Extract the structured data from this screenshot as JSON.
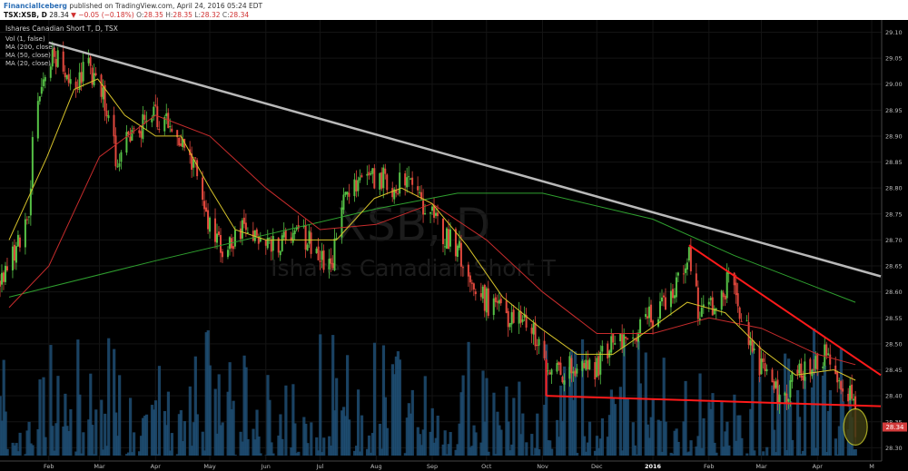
{
  "header": {
    "publisher": "FinancialIceberg",
    "published_text": "published on TradingView.com, April 24, 2016 05:24 EDT",
    "symbol_line": "TSX:XSB, D",
    "last": "28.34",
    "change": "−0.05 (−0.18%)",
    "open_label": "O:",
    "open": "28.35",
    "high_label": "H:",
    "high": "28.35",
    "low_label": "L:",
    "low": "28.32",
    "close_label": "C:",
    "close": "28.34"
  },
  "legend": {
    "title": "Ishares Canadian Short T, D, TSX",
    "items": [
      "Vol (1, false)",
      "MA (200, close)",
      "MA (50, close)",
      "MA (20, close)"
    ]
  },
  "watermark": {
    "symbol": "XSB, D",
    "name": "Ishares Canadian Short T"
  },
  "price_badge": "28.34",
  "colors": {
    "background": "#000000",
    "candle_up": "#56c246",
    "candle_down": "#e2483d",
    "ma20": "#d7c32a",
    "ma50": "#c72c2c",
    "ma200": "#2fa02f",
    "volume": "#1e4d73",
    "trendline_upper": "#b9b9b9",
    "trendline_red": "#ff1a1a",
    "price_badge": "#d23b3b"
  },
  "chart_data": {
    "type": "candlestick",
    "y_axis": {
      "ticks": [
        "29.10",
        "29.05",
        "29.00",
        "28.95",
        "28.90",
        "28.85",
        "28.80",
        "28.75",
        "28.70",
        "28.65",
        "28.60",
        "28.55",
        "28.50",
        "28.45",
        "28.40",
        "28.35",
        "28.30"
      ],
      "range": [
        28.285,
        29.12
      ]
    },
    "x_axis": {
      "ticks": [
        {
          "label": "Feb",
          "date": "2015-02-01"
        },
        {
          "label": "Mar",
          "date": "2015-03-01"
        },
        {
          "label": "Apr",
          "date": "2015-04-01"
        },
        {
          "label": "May",
          "date": "2015-05-01"
        },
        {
          "label": "Jun",
          "date": "2015-06-01"
        },
        {
          "label": "Jul",
          "date": "2015-07-01"
        },
        {
          "label": "Aug",
          "date": "2015-08-01"
        },
        {
          "label": "Sep",
          "date": "2015-09-01"
        },
        {
          "label": "Oct",
          "date": "2015-10-01"
        },
        {
          "label": "Nov",
          "date": "2015-11-01"
        },
        {
          "label": "Dec",
          "date": "2015-12-01"
        },
        {
          "label": "2016",
          "date": "2016-01-01"
        },
        {
          "label": "Feb",
          "date": "2016-02-01"
        },
        {
          "label": "Mar",
          "date": "2016-03-01"
        },
        {
          "label": "Apr",
          "date": "2016-04-01"
        },
        {
          "label": "M",
          "date": "2016-05-01"
        }
      ],
      "range": [
        "2015-01-05",
        "2016-05-06"
      ]
    },
    "price_path": [
      [
        "2015-01-05",
        28.62
      ],
      [
        "2015-01-13",
        28.67
      ],
      [
        "2015-01-21",
        28.74
      ],
      [
        "2015-01-24",
        28.95
      ],
      [
        "2015-01-31",
        29.02
      ],
      [
        "2015-02-04",
        29.06
      ],
      [
        "2015-02-14",
        28.98
      ],
      [
        "2015-02-21",
        29.04
      ],
      [
        "2015-03-01",
        29.0
      ],
      [
        "2015-03-10",
        28.86
      ],
      [
        "2015-03-18",
        28.9
      ],
      [
        "2015-03-28",
        28.93
      ],
      [
        "2015-04-06",
        28.94
      ],
      [
        "2015-04-14",
        28.89
      ],
      [
        "2015-04-24",
        28.84
      ],
      [
        "2015-05-01",
        28.72
      ],
      [
        "2015-05-10",
        28.68
      ],
      [
        "2015-05-20",
        28.72
      ],
      [
        "2015-05-30",
        28.7
      ],
      [
        "2015-06-10",
        28.7
      ],
      [
        "2015-06-22",
        28.71
      ],
      [
        "2015-07-01",
        28.67
      ],
      [
        "2015-07-07",
        28.65
      ],
      [
        "2015-07-14",
        28.78
      ],
      [
        "2015-07-24",
        28.82
      ],
      [
        "2015-08-04",
        28.82
      ],
      [
        "2015-08-12",
        28.8
      ],
      [
        "2015-08-20",
        28.84
      ],
      [
        "2015-08-27",
        28.77
      ],
      [
        "2015-09-05",
        28.72
      ],
      [
        "2015-09-15",
        28.69
      ],
      [
        "2015-09-25",
        28.6
      ],
      [
        "2015-10-05",
        28.57
      ],
      [
        "2015-10-15",
        28.55
      ],
      [
        "2015-10-25",
        28.54
      ],
      [
        "2015-11-03",
        28.47
      ],
      [
        "2015-11-10",
        28.44
      ],
      [
        "2015-11-20",
        28.46
      ],
      [
        "2015-11-30",
        28.45
      ],
      [
        "2015-12-10",
        28.51
      ],
      [
        "2015-12-20",
        28.52
      ],
      [
        "2015-12-30",
        28.55
      ],
      [
        "2016-01-10",
        28.58
      ],
      [
        "2016-01-21",
        28.68
      ],
      [
        "2016-01-27",
        28.55
      ],
      [
        "2016-02-05",
        28.58
      ],
      [
        "2016-02-12",
        28.62
      ],
      [
        "2016-02-21",
        28.53
      ],
      [
        "2016-02-28",
        28.46
      ],
      [
        "2016-03-07",
        28.41
      ],
      [
        "2016-03-14",
        28.4
      ],
      [
        "2016-03-21",
        28.44
      ],
      [
        "2016-03-31",
        28.47
      ],
      [
        "2016-04-08",
        28.48
      ],
      [
        "2016-04-14",
        28.43
      ],
      [
        "2016-04-20",
        28.4
      ],
      [
        "2016-04-22",
        28.34
      ]
    ],
    "ma20": [
      [
        "2015-01-10",
        28.7
      ],
      [
        "2015-01-31",
        28.86
      ],
      [
        "2015-02-15",
        28.99
      ],
      [
        "2015-02-28",
        29.01
      ],
      [
        "2015-03-15",
        28.94
      ],
      [
        "2015-04-01",
        28.9
      ],
      [
        "2015-04-15",
        28.9
      ],
      [
        "2015-05-01",
        28.8
      ],
      [
        "2015-05-15",
        28.72
      ],
      [
        "2015-06-01",
        28.7
      ],
      [
        "2015-06-20",
        28.7
      ],
      [
        "2015-07-10",
        28.7
      ],
      [
        "2015-07-31",
        28.78
      ],
      [
        "2015-08-15",
        28.8
      ],
      [
        "2015-09-01",
        28.77
      ],
      [
        "2015-09-20",
        28.69
      ],
      [
        "2015-10-10",
        28.59
      ],
      [
        "2015-10-31",
        28.53
      ],
      [
        "2015-11-20",
        28.48
      ],
      [
        "2015-12-10",
        28.48
      ],
      [
        "2015-12-31",
        28.53
      ],
      [
        "2016-01-20",
        28.58
      ],
      [
        "2016-02-10",
        28.56
      ],
      [
        "2016-03-01",
        28.49
      ],
      [
        "2016-03-20",
        28.44
      ],
      [
        "2016-04-10",
        28.45
      ],
      [
        "2016-04-22",
        28.43
      ]
    ],
    "ma50": [
      [
        "2015-01-10",
        28.57
      ],
      [
        "2015-02-01",
        28.65
      ],
      [
        "2015-03-01",
        28.86
      ],
      [
        "2015-04-01",
        28.94
      ],
      [
        "2015-05-01",
        28.9
      ],
      [
        "2015-06-01",
        28.8
      ],
      [
        "2015-07-01",
        28.72
      ],
      [
        "2015-08-01",
        28.73
      ],
      [
        "2015-09-01",
        28.77
      ],
      [
        "2015-10-01",
        28.7
      ],
      [
        "2015-11-01",
        28.6
      ],
      [
        "2015-12-01",
        28.52
      ],
      [
        "2016-01-01",
        28.52
      ],
      [
        "2016-02-01",
        28.55
      ],
      [
        "2016-03-01",
        28.53
      ],
      [
        "2016-04-01",
        28.48
      ],
      [
        "2016-04-22",
        28.46
      ]
    ],
    "ma200": [
      [
        "2015-01-10",
        28.59
      ],
      [
        "2015-04-01",
        28.66
      ],
      [
        "2015-06-01",
        28.71
      ],
      [
        "2015-08-01",
        28.76
      ],
      [
        "2015-09-15",
        28.79
      ],
      [
        "2015-11-01",
        28.79
      ],
      [
        "2016-01-01",
        28.74
      ],
      [
        "2016-02-15",
        28.67
      ],
      [
        "2016-04-22",
        28.58
      ]
    ],
    "trendlines": [
      {
        "name": "upper-resistance",
        "points": [
          [
            "2015-02-01",
            29.08
          ],
          [
            "2016-05-06",
            28.63
          ]
        ]
      },
      {
        "name": "falling-resistance",
        "points": [
          [
            "2016-01-21",
            28.69
          ],
          [
            "2016-05-06",
            28.44
          ]
        ]
      },
      {
        "name": "support",
        "points": [
          [
            "2015-11-03",
            28.4
          ],
          [
            "2016-05-06",
            28.38
          ]
        ]
      },
      {
        "name": "support-tick",
        "points": [
          [
            "2015-11-03",
            28.47
          ],
          [
            "2015-11-03",
            28.4
          ]
        ]
      }
    ],
    "highlight_circle": {
      "date": "2016-04-22",
      "value": 28.34
    },
    "volume_max_fraction": 0.3
  }
}
